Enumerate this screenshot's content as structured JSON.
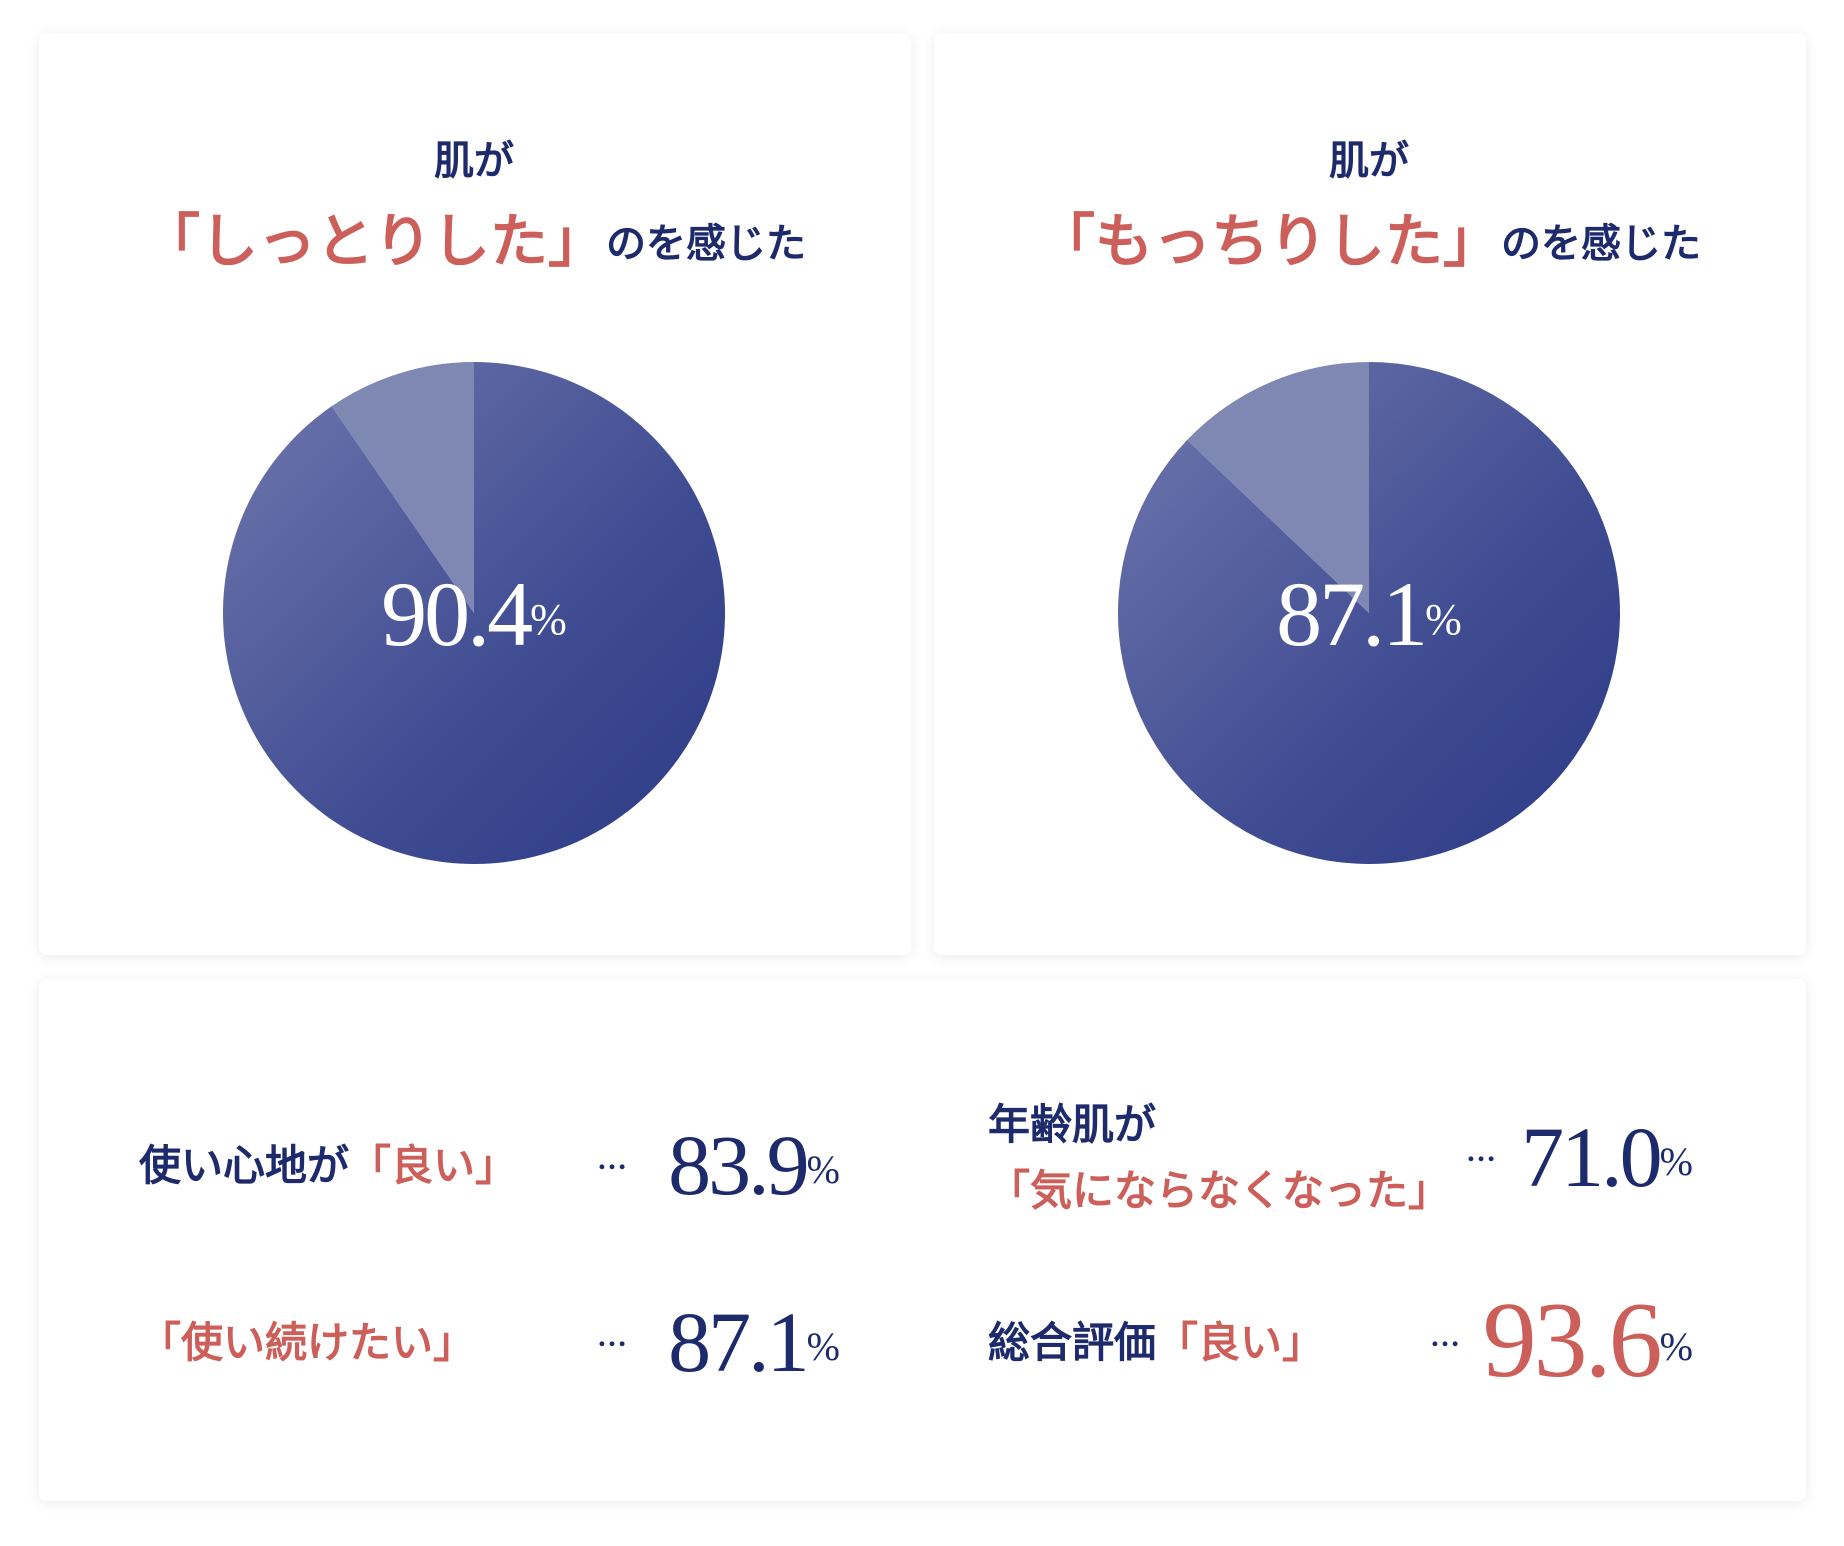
{
  "chart_data": [
    {
      "type": "pie",
      "title": {
        "line1": "肌が",
        "highlight": "「しっとりした」",
        "rest": "のを感じた"
      },
      "values": [
        90.4,
        9.6
      ],
      "unit": "%",
      "colors": [
        "#34418a",
        "#7f88b3"
      ]
    },
    {
      "type": "pie",
      "title": {
        "line1": "肌が",
        "highlight": "「もっちりした」",
        "rest": "のを感じた"
      },
      "values": [
        87.1,
        12.9
      ],
      "unit": "%",
      "colors": [
        "#34418a",
        "#7f88b3"
      ]
    }
  ],
  "separator": "…",
  "stats": [
    {
      "lines": [
        [
          {
            "text": "使い心地が",
            "color": "#1d2a6b"
          },
          {
            "text": "「良い」",
            "color": "#cc5f5a"
          }
        ]
      ],
      "value": "83.9",
      "unit": "%",
      "color": "#1d2a6b"
    },
    {
      "lines": [
        [
          {
            "text": "「使い続けたい」",
            "color": "#cc5f5a"
          }
        ]
      ],
      "value": "87.1",
      "unit": "%",
      "color": "#1d2a6b"
    },
    {
      "lines": [
        [
          {
            "text": "年齢肌が",
            "color": "#1d2a6b"
          }
        ],
        [
          {
            "text": "「気にならなくなった」",
            "color": "#cc5f5a"
          }
        ]
      ],
      "value": "71.0",
      "unit": "%",
      "color": "#1d2a6b"
    },
    {
      "lines": [
        [
          {
            "text": "総合評価",
            "color": "#1d2a6b"
          },
          {
            "text": "「良い」",
            "color": "#cc5f5a"
          }
        ]
      ],
      "value": "93.6",
      "unit": "%",
      "color": "#cc5f5a"
    }
  ]
}
